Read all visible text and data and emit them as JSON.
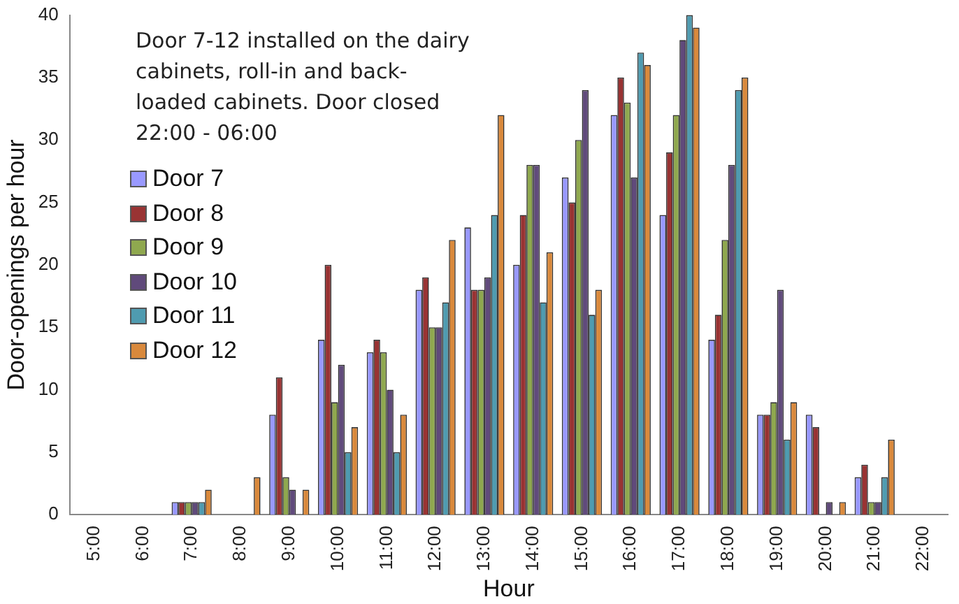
{
  "chart_data": {
    "type": "bar",
    "xlabel": "Hour",
    "ylabel": "Door-openings per hour",
    "annotations": [
      "Door 7-12 installed on the dairy cabinets, roll-in and back-loaded cabinets. Door closed 22:00 - 06:00"
    ],
    "categories": [
      "5:00",
      "6:00",
      "7:00",
      "8:00",
      "9:00",
      "10:00",
      "11:00",
      "12:00",
      "13:00",
      "14:00",
      "15:00",
      "16:00",
      "17:00",
      "18:00",
      "19:00",
      "20:00",
      "21:00",
      "22:00"
    ],
    "series": [
      {
        "name": "Door 7",
        "color": "#9999ff",
        "values": [
          0,
          0,
          1,
          0,
          8,
          14,
          13,
          18,
          23,
          20,
          27,
          32,
          24,
          14,
          8,
          8,
          3,
          0
        ]
      },
      {
        "name": "Door 8",
        "color": "#993333",
        "values": [
          0,
          0,
          1,
          0,
          11,
          20,
          14,
          19,
          18,
          24,
          25,
          35,
          29,
          16,
          8,
          7,
          4,
          0
        ]
      },
      {
        "name": "Door 9",
        "color": "#8fa84f",
        "values": [
          0,
          0,
          1,
          0,
          3,
          9,
          13,
          15,
          18,
          28,
          30,
          33,
          32,
          22,
          9,
          0,
          1,
          0
        ]
      },
      {
        "name": "Door 10",
        "color": "#604a7b",
        "values": [
          0,
          0,
          1,
          0,
          2,
          12,
          10,
          15,
          19,
          28,
          34,
          27,
          38,
          28,
          18,
          1,
          1,
          0
        ]
      },
      {
        "name": "Door 11",
        "color": "#4f9bb0",
        "values": [
          0,
          0,
          1,
          0,
          0,
          5,
          5,
          17,
          24,
          17,
          16,
          37,
          40,
          34,
          6,
          0,
          3,
          0
        ]
      },
      {
        "name": "Door 12",
        "color": "#d9893c",
        "values": [
          0,
          0,
          2,
          3,
          2,
          7,
          8,
          22,
          32,
          21,
          18,
          36,
          39,
          35,
          9,
          1,
          6,
          0
        ]
      }
    ],
    "ylim": [
      0,
      40
    ],
    "yticks": [
      0,
      5,
      10,
      15,
      20,
      25,
      30,
      35,
      40
    ],
    "grid": false,
    "legend": "top left"
  }
}
